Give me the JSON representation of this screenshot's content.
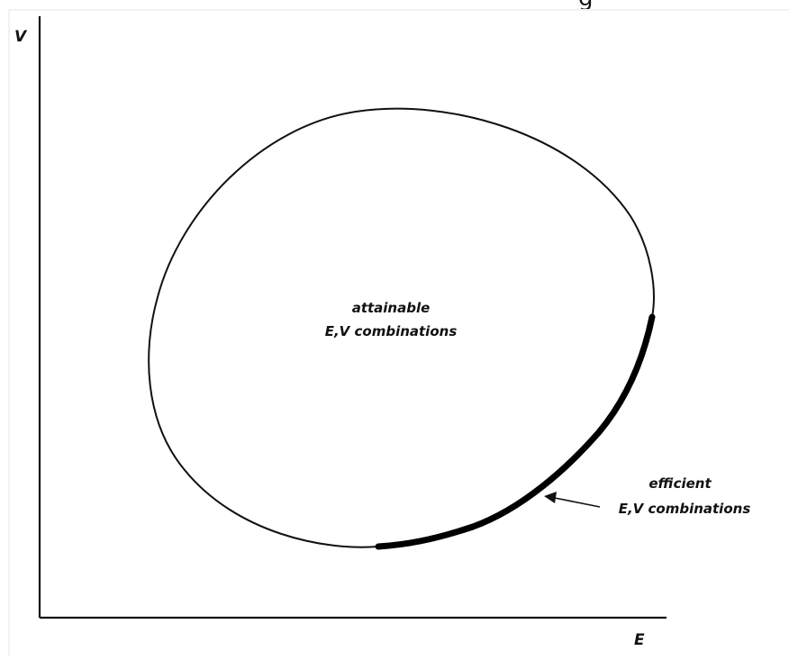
{
  "axes": {
    "y_label": "V",
    "x_label": "E"
  },
  "labels": {
    "attainable_line1": "attainable",
    "attainable_line2": "E,V combinations",
    "efficient_line1": "efficient",
    "efficient_line2": "E,V combinations"
  },
  "top_fragment": "g",
  "colors": {
    "ink": "#111111",
    "background": "#ffffff",
    "frame_border": "#e6e6e6"
  }
}
